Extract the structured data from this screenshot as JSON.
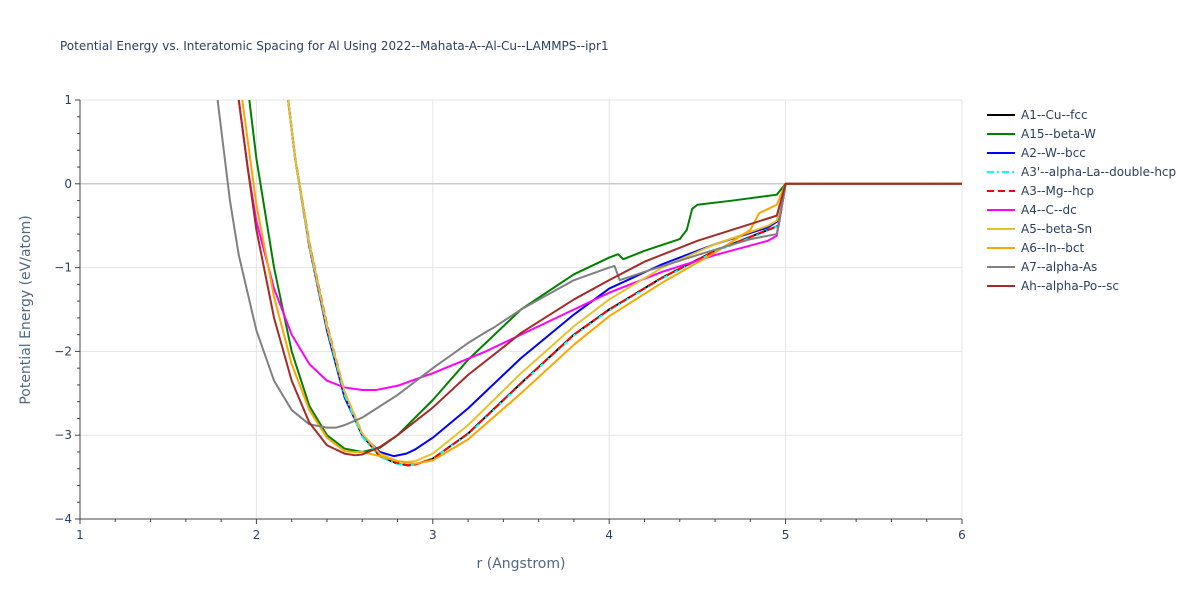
{
  "chart_data": {
    "type": "line",
    "title": "Potential Energy vs. Interatomic Spacing for Al Using 2022--Mahata-A--Al-Cu--LAMMPS--ipr1",
    "xlabel": "r (Angstrom)",
    "ylabel": "Potential Energy (eV/atom)",
    "xlim": [
      1,
      6
    ],
    "ylim": [
      -4,
      1
    ],
    "xticks": [
      "1",
      "2",
      "3",
      "4",
      "5",
      "6"
    ],
    "yticks": [
      "1",
      "0",
      "−1",
      "−2",
      "−3",
      "−4"
    ],
    "grid": true,
    "legend_position": "right",
    "series": [
      {
        "name": "A1--Cu--fcc",
        "color": "#000000",
        "dash": "solid",
        "x": [
          2.18,
          2.22,
          2.3,
          2.4,
          2.5,
          2.6,
          2.7,
          2.8,
          2.86,
          2.9,
          3.0,
          3.2,
          3.5,
          3.8,
          4.0,
          4.3,
          4.6,
          4.9,
          4.96,
          5.0,
          6.0
        ],
        "y": [
          1.0,
          0.3,
          -0.72,
          -1.7,
          -2.5,
          -3.0,
          -3.25,
          -3.34,
          -3.36,
          -3.35,
          -3.28,
          -2.98,
          -2.38,
          -1.8,
          -1.5,
          -1.12,
          -0.8,
          -0.55,
          -0.5,
          0.0,
          0.0
        ]
      },
      {
        "name": "A15--beta-W",
        "color": "#008000",
        "dash": "solid",
        "x": [
          1.96,
          2.0,
          2.1,
          2.2,
          2.3,
          2.4,
          2.5,
          2.6,
          2.7,
          2.8,
          3.0,
          3.2,
          3.5,
          3.8,
          4.0,
          4.05,
          4.08,
          4.2,
          4.4,
          4.44,
          4.47,
          4.5,
          4.7,
          4.95,
          5.0,
          6.0
        ],
        "y": [
          1.0,
          0.3,
          -1.0,
          -2.0,
          -2.65,
          -3.0,
          -3.16,
          -3.2,
          -3.15,
          -3.0,
          -2.58,
          -2.1,
          -1.5,
          -1.08,
          -0.88,
          -0.84,
          -0.9,
          -0.8,
          -0.66,
          -0.55,
          -0.3,
          -0.25,
          -0.2,
          -0.13,
          0.0,
          0.0
        ]
      },
      {
        "name": "A2--W--bcc",
        "color": "#0000ff",
        "dash": "solid",
        "x": [
          2.18,
          2.22,
          2.3,
          2.4,
          2.5,
          2.6,
          2.7,
          2.78,
          2.85,
          2.9,
          3.0,
          3.2,
          3.5,
          3.8,
          4.0,
          4.3,
          4.6,
          4.9,
          4.96,
          5.0,
          6.0
        ],
        "y": [
          1.0,
          0.3,
          -0.75,
          -1.75,
          -2.55,
          -3.0,
          -3.2,
          -3.25,
          -3.22,
          -3.17,
          -3.03,
          -2.68,
          -2.08,
          -1.56,
          -1.25,
          -0.96,
          -0.72,
          -0.52,
          -0.44,
          0.0,
          0.0
        ]
      },
      {
        "name": "A3'--alpha-La--double-hcp",
        "color": "#00ffff",
        "dash": "dashdot",
        "x": [
          2.18,
          2.22,
          2.3,
          2.4,
          2.5,
          2.6,
          2.7,
          2.8,
          2.86,
          2.9,
          3.0,
          3.2,
          3.5,
          3.8,
          4.0,
          4.3,
          4.6,
          4.9,
          4.96,
          5.0,
          6.0
        ],
        "y": [
          1.0,
          0.3,
          -0.74,
          -1.72,
          -2.52,
          -3.02,
          -3.26,
          -3.34,
          -3.36,
          -3.35,
          -3.28,
          -2.99,
          -2.39,
          -1.81,
          -1.51,
          -1.13,
          -0.81,
          -0.56,
          -0.5,
          0.0,
          0.0
        ]
      },
      {
        "name": "A3--Mg--hcp",
        "color": "#ff0000",
        "dash": "dash",
        "x": [
          2.18,
          2.22,
          2.3,
          2.4,
          2.5,
          2.6,
          2.7,
          2.8,
          2.86,
          2.9,
          3.0,
          3.2,
          3.5,
          3.8,
          4.0,
          4.3,
          4.6,
          4.9,
          4.96,
          5.0,
          6.0
        ],
        "y": [
          1.0,
          0.3,
          -0.7,
          -1.68,
          -2.48,
          -2.98,
          -3.24,
          -3.33,
          -3.36,
          -3.35,
          -3.28,
          -2.98,
          -2.38,
          -1.8,
          -1.5,
          -1.12,
          -0.8,
          -0.55,
          -0.5,
          0.0,
          0.0
        ]
      },
      {
        "name": "A4--C--dc",
        "color": "#ff00ff",
        "dash": "solid",
        "x": [
          1.9,
          1.95,
          2.0,
          2.1,
          2.2,
          2.3,
          2.4,
          2.5,
          2.6,
          2.68,
          2.8,
          3.0,
          3.3,
          3.6,
          4.0,
          4.3,
          4.6,
          4.9,
          4.95,
          5.0,
          6.0
        ],
        "y": [
          1.0,
          0.2,
          -0.45,
          -1.25,
          -1.8,
          -2.15,
          -2.35,
          -2.43,
          -2.46,
          -2.46,
          -2.41,
          -2.26,
          -2.0,
          -1.7,
          -1.3,
          -1.05,
          -0.85,
          -0.68,
          -0.62,
          0.0,
          0.0
        ]
      },
      {
        "name": "A5--beta-Sn",
        "color": "#e6c229",
        "dash": "solid",
        "x": [
          2.18,
          2.22,
          2.3,
          2.4,
          2.5,
          2.6,
          2.7,
          2.8,
          2.85,
          2.9,
          3.0,
          3.2,
          3.5,
          3.8,
          4.0,
          4.3,
          4.6,
          4.9,
          4.95,
          5.0,
          6.0
        ],
        "y": [
          1.0,
          0.3,
          -0.72,
          -1.7,
          -2.48,
          -2.98,
          -3.22,
          -3.31,
          -3.32,
          -3.31,
          -3.22,
          -2.88,
          -2.26,
          -1.7,
          -1.38,
          -1.0,
          -0.72,
          -0.5,
          -0.44,
          0.0,
          0.0
        ]
      },
      {
        "name": "A6--In--bct",
        "color": "#ffa500",
        "dash": "solid",
        "x": [
          1.92,
          2.0,
          2.1,
          2.2,
          2.3,
          2.4,
          2.5,
          2.55,
          2.6,
          2.7,
          2.8,
          2.9,
          3.0,
          3.2,
          3.5,
          3.8,
          4.0,
          4.3,
          4.6,
          4.8,
          4.85,
          4.9,
          4.95,
          5.0,
          6.0
        ],
        "y": [
          1.0,
          -0.25,
          -1.35,
          -2.15,
          -2.7,
          -3.03,
          -3.19,
          -3.2,
          -3.2,
          -3.25,
          -3.31,
          -3.34,
          -3.3,
          -3.05,
          -2.5,
          -1.92,
          -1.58,
          -1.18,
          -0.82,
          -0.55,
          -0.35,
          -0.3,
          -0.25,
          0.0,
          0.0
        ]
      },
      {
        "name": "A7--alpha-As",
        "color": "#808080",
        "dash": "solid",
        "x": [
          1.78,
          1.85,
          1.9,
          2.0,
          2.1,
          2.2,
          2.3,
          2.4,
          2.45,
          2.5,
          2.6,
          2.8,
          3.0,
          3.2,
          3.3,
          3.35,
          3.5,
          3.8,
          4.0,
          4.03,
          4.06,
          4.2,
          4.5,
          4.8,
          4.95,
          5.0,
          6.0
        ],
        "y": [
          1.0,
          -0.2,
          -0.85,
          -1.75,
          -2.35,
          -2.7,
          -2.87,
          -2.91,
          -2.91,
          -2.88,
          -2.79,
          -2.52,
          -2.2,
          -1.9,
          -1.77,
          -1.71,
          -1.5,
          -1.15,
          -1.0,
          -0.98,
          -1.15,
          -1.05,
          -0.85,
          -0.66,
          -0.6,
          0.0,
          0.0
        ]
      },
      {
        "name": "Ah--alpha-Po--sc",
        "color": "#a52a2a",
        "dash": "solid",
        "x": [
          1.9,
          1.95,
          2.0,
          2.1,
          2.2,
          2.3,
          2.4,
          2.5,
          2.56,
          2.6,
          2.7,
          2.8,
          3.0,
          3.2,
          3.4,
          3.5,
          3.8,
          4.0,
          4.2,
          4.5,
          4.8,
          4.95,
          5.0,
          6.0
        ],
        "y": [
          1.0,
          0.2,
          -0.55,
          -1.6,
          -2.35,
          -2.85,
          -3.12,
          -3.22,
          -3.24,
          -3.23,
          -3.14,
          -3.0,
          -2.67,
          -2.28,
          -1.95,
          -1.78,
          -1.38,
          -1.15,
          -0.93,
          -0.68,
          -0.48,
          -0.38,
          0.0,
          0.0
        ]
      }
    ]
  }
}
